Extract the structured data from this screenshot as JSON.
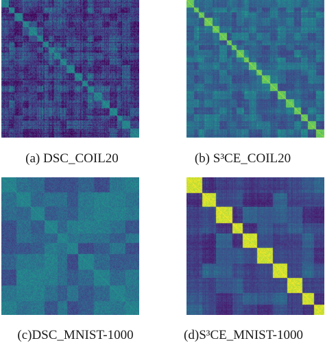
{
  "chart_data": [
    {
      "type": "heatmap",
      "caption": "(a) DSC_COIL20",
      "title": "",
      "n_clusters": 20,
      "diagonal_strength": 0.55,
      "off_diagonal_level": 0.25,
      "noise": 0.28,
      "pattern": "blocky",
      "colormap": "viridis"
    },
    {
      "type": "heatmap",
      "caption": "(b) S³CE_COIL20",
      "title": "",
      "n_clusters": 20,
      "diagonal_strength": 0.82,
      "off_diagonal_level": 0.42,
      "noise": 0.14,
      "pattern": "blocky",
      "colormap": "viridis"
    },
    {
      "type": "heatmap",
      "caption": "(c)DSC_MNIST-1000",
      "title": "",
      "n_clusters": 10,
      "diagonal_strength": 0.55,
      "off_diagonal_level": 0.42,
      "noise": 0.22,
      "pattern": "fine",
      "colormap": "viridis"
    },
    {
      "type": "heatmap",
      "caption": "(d)S³CE_MNIST-1000",
      "title": "",
      "n_clusters": 10,
      "diagonal_strength": 0.95,
      "off_diagonal_level": 0.28,
      "noise": 0.12,
      "pattern": "blocky",
      "colormap": "viridis"
    }
  ]
}
